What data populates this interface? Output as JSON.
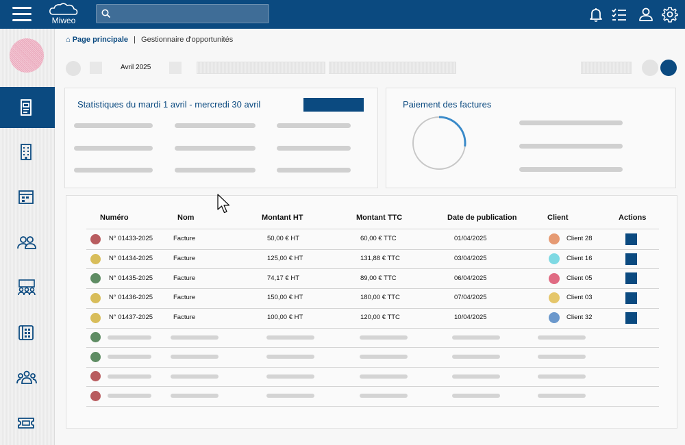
{
  "header": {
    "app_name": "Miweo",
    "search_placeholder": "",
    "icons": [
      "menu-icon",
      "bell-icon",
      "task-list-icon",
      "user-icon",
      "settings-icon"
    ],
    "bg_color": "#0b4a80"
  },
  "sidebar": {
    "items": [
      {
        "icon": "invoice-document-icon",
        "active": true
      },
      {
        "icon": "building-icon",
        "active": false
      },
      {
        "icon": "calendar-icon",
        "active": false
      },
      {
        "icon": "contacts-icon",
        "active": false
      },
      {
        "icon": "meeting-icon",
        "active": false
      },
      {
        "icon": "directory-icon",
        "active": false
      },
      {
        "icon": "team-icon",
        "active": false
      },
      {
        "icon": "ticket-icon",
        "active": false
      }
    ]
  },
  "breadcrumb": {
    "home": "Page principale",
    "separator": "|",
    "current": "Gestionnaire d'opportunités"
  },
  "toolbar": {
    "month": "Avril 2025"
  },
  "stats_card": {
    "title": "Statistiques du mardi 1 avril - mercredi 30 avril"
  },
  "payment_card": {
    "title": "Paiement des factures",
    "progress": 0.27
  },
  "table": {
    "columns": [
      "Numéro",
      "Nom",
      "Montant HT",
      "Montant TTC",
      "Date de publication",
      "Client",
      "Actions"
    ],
    "rows": [
      {
        "status_color": "#b85c5f",
        "numero": "N° 01433-2025",
        "nom": "Facture",
        "ht": "50,00 € HT",
        "ttc": "60,00 € TTC",
        "date": "01/04/2025",
        "client": "Client 28",
        "client_color": "#e69a73"
      },
      {
        "status_color": "#d8bd5a",
        "numero": "N° 01434-2025",
        "nom": "Facture",
        "ht": "125,00 € HT",
        "ttc": "131,88 € TTC",
        "date": "03/04/2025",
        "client": "Client 16",
        "client_color": "#7ed9e3"
      },
      {
        "status_color": "#5e8c63",
        "numero": "N° 01435-2025",
        "nom": "Facture",
        "ht": "74,17 € HT",
        "ttc": "89,00 € TTC",
        "date": "06/04/2025",
        "client": "Client 05",
        "client_color": "#e06b83"
      },
      {
        "status_color": "#d8bd5a",
        "numero": "N° 01436-2025",
        "nom": "Facture",
        "ht": "150,00 € HT",
        "ttc": "180,00 € TTC",
        "date": "07/04/2025",
        "client": "Client 03",
        "client_color": "#e5c66a"
      },
      {
        "status_color": "#d8bd5a",
        "numero": "N° 01437-2025",
        "nom": "Facture",
        "ht": "100,00 € HT",
        "ttc": "120,00 € TTC",
        "date": "10/04/2025",
        "client": "Client 32",
        "client_color": "#6b98cc"
      }
    ],
    "placeholder_status_colors": [
      "#5e8c63",
      "#5e8c63",
      "#b85c5f",
      "#b85c5f"
    ]
  }
}
